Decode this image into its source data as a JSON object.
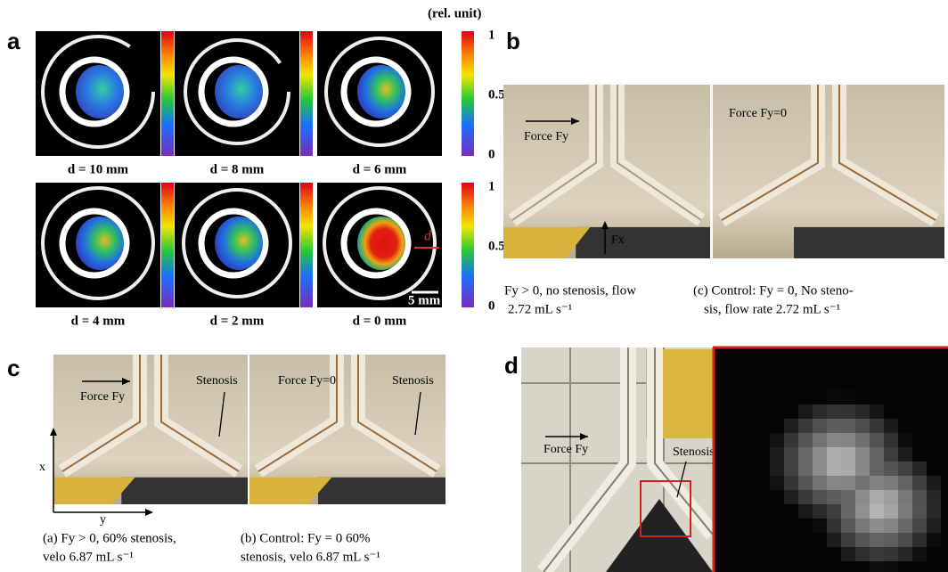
{
  "panels": {
    "a": {
      "label": "a",
      "unit": "(rel. unit)",
      "colorbar_ticks": [
        "1",
        "0.5",
        "0"
      ],
      "images": [
        {
          "label": "d = 10 mm"
        },
        {
          "label": "d = 8 mm"
        },
        {
          "label": "d = 6 mm"
        },
        {
          "label": "d = 4 mm"
        },
        {
          "label": "d = 2 mm"
        },
        {
          "label": "d = 0 mm"
        }
      ],
      "scale_bar": "5 mm",
      "marker": "d"
    },
    "b": {
      "label": "b",
      "left_force": "Force Fy",
      "right_force": "Force Fy=0",
      "vertical_force": "Fx",
      "caption_left": [
        "Fy > 0, no stenosis, flow",
        "2.72 mL s⁻¹"
      ],
      "caption_right": [
        "(c) Control: Fy = 0, No steno-",
        "sis, flow rate 2.72 mL s⁻¹"
      ]
    },
    "c": {
      "label": "c",
      "left_force": "Force Fy",
      "right_force": "Force Fy=0",
      "stenosis": "Stenosis",
      "axis_x": "x",
      "axis_y": "y",
      "caption_left": [
        "(a) Fy > 0, 60% stenosis,",
        "velo 6.87 mL s⁻¹"
      ],
      "caption_right": [
        "(b) Control: Fy = 0 60%",
        "stenosis, velo 6.87 mL s⁻¹"
      ]
    },
    "d": {
      "label": "d",
      "force": "Force Fy",
      "stenosis": "Stenosis"
    }
  }
}
